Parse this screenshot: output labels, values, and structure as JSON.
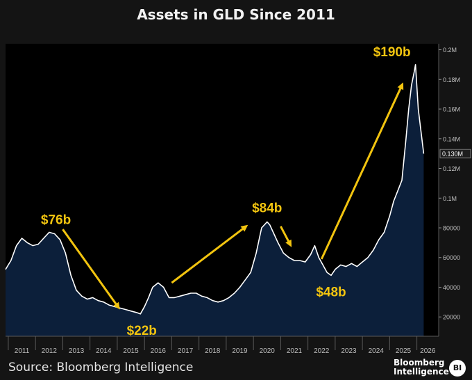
{
  "chart_data": {
    "type": "area",
    "title": "Assets in GLD Since 2011",
    "source": "Source: Bloomberg Intelligence",
    "x_tick_labels": [
      "2011",
      "2012",
      "2013",
      "2014",
      "2015",
      "2016",
      "2017",
      "2018",
      "2019",
      "2020",
      "2021",
      "2022",
      "2023",
      "2024",
      "2025",
      "2026"
    ],
    "y_tick_labels": [
      "20000",
      "40000",
      "60000",
      "80000",
      "0.1M",
      "0.12M",
      "0.14M",
      "0.16M",
      "0.18M",
      "0.2M"
    ],
    "y_tick_values": [
      20000,
      40000,
      60000,
      80000,
      100000,
      120000,
      140000,
      160000,
      180000,
      200000
    ],
    "ylim": [
      7000,
      204000
    ],
    "xlim": [
      2010.9,
      2026.8
    ],
    "last_value_label": "0.130M",
    "series": [
      {
        "x": [
          2010.9,
          2011.1,
          2011.3,
          2011.5,
          2011.7,
          2011.9,
          2012.1,
          2012.3,
          2012.5,
          2012.7,
          2012.9,
          2013.1,
          2013.3,
          2013.5,
          2013.7,
          2013.9,
          2014.1,
          2014.3,
          2014.5,
          2014.7,
          2014.9,
          2015.1,
          2015.3,
          2015.5,
          2015.7,
          2015.85,
          2016.0,
          2016.15,
          2016.3,
          2016.5,
          2016.7,
          2016.9,
          2017.1,
          2017.3,
          2017.5,
          2017.7,
          2017.9,
          2018.1,
          2018.3,
          2018.5,
          2018.7,
          2018.9,
          2019.1,
          2019.3,
          2019.5,
          2019.7,
          2019.9,
          2020.1,
          2020.3,
          2020.5,
          2020.6,
          2020.75,
          2020.9,
          2021.1,
          2021.3,
          2021.5,
          2021.7,
          2021.9,
          2022.1,
          2022.25,
          2022.4,
          2022.55,
          2022.7,
          2022.85,
          2023.0,
          2023.2,
          2023.4,
          2023.6,
          2023.8,
          2024.0,
          2024.2,
          2024.4,
          2024.6,
          2024.8,
          2025.0,
          2025.15,
          2025.3,
          2025.45,
          2025.6,
          2025.7,
          2025.8,
          2025.9,
          2025.95,
          2026.05,
          2026.15,
          2026.25
        ],
        "values": [
          52000,
          58000,
          68000,
          73000,
          70000,
          68000,
          69000,
          73000,
          77000,
          76000,
          72000,
          63000,
          48000,
          38000,
          34000,
          32000,
          33000,
          31000,
          30000,
          28000,
          27000,
          26000,
          25000,
          24000,
          23000,
          22000,
          27000,
          33000,
          40000,
          43000,
          40000,
          33000,
          33000,
          34000,
          35000,
          36000,
          36000,
          34000,
          33000,
          31000,
          30000,
          31000,
          33000,
          36000,
          40000,
          45000,
          50000,
          63000,
          80000,
          84000,
          82000,
          76000,
          70000,
          63000,
          60000,
          58000,
          58000,
          57000,
          62000,
          68000,
          60000,
          55000,
          50000,
          48000,
          52000,
          55000,
          54000,
          56000,
          54000,
          57000,
          60000,
          65000,
          72000,
          77000,
          88000,
          98000,
          105000,
          112000,
          140000,
          160000,
          176000,
          185000,
          190000,
          160000,
          145000,
          130000
        ]
      }
    ],
    "annotations": [
      {
        "label": "$76b",
        "value": 76,
        "x": 2012.8
      },
      {
        "label": "$22b",
        "value": 22,
        "x": 2015.85
      },
      {
        "label": "$84b",
        "value": 84,
        "x": 2020.5
      },
      {
        "label": "$48b",
        "value": 48,
        "x": 2022.85
      },
      {
        "label": "$190b",
        "value": 190,
        "x": 2025.95
      }
    ],
    "arrows": [
      {
        "from": [
          2013.0,
          79000
        ],
        "to": [
          2015.1,
          25000
        ]
      },
      {
        "from": [
          2017.0,
          43000
        ],
        "to": [
          2019.8,
          82000
        ]
      },
      {
        "from": [
          2021.0,
          81000
        ],
        "to": [
          2021.4,
          67000
        ]
      },
      {
        "from": [
          2022.5,
          59000
        ],
        "to": [
          2025.5,
          178000
        ]
      }
    ],
    "colors": {
      "area_fill": "#0c1f3a",
      "line": "#ffffff",
      "annotation": "#f2c40f",
      "axis_text": "#bfbfbf"
    }
  },
  "branding": {
    "logo_text": "Bloomberg Intelligence",
    "logo_badge": "BI"
  }
}
